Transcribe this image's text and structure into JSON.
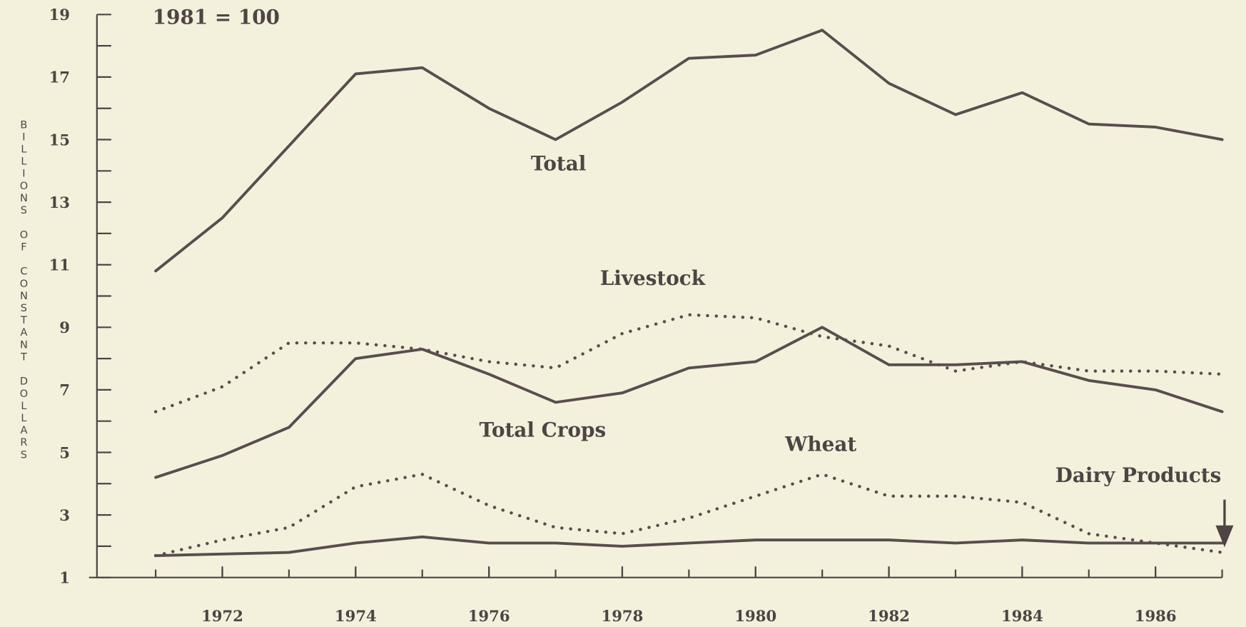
{
  "chart_data": {
    "type": "line",
    "annotation": "1981 = 100",
    "y_label": "BILLIONS OF CONSTANT DOLLARS",
    "x": [
      1971,
      1972,
      1973,
      1974,
      1975,
      1976,
      1977,
      1978,
      1979,
      1980,
      1981,
      1982,
      1983,
      1984,
      1985,
      1986,
      1987
    ],
    "xlim": [
      1970,
      1987
    ],
    "xticks": [
      1972,
      1974,
      1976,
      1978,
      1980,
      1982,
      1984,
      1986
    ],
    "ylim": [
      1,
      19
    ],
    "yticks": [
      1,
      3,
      5,
      7,
      9,
      11,
      13,
      15,
      17,
      19
    ],
    "series": [
      {
        "name": "Total",
        "color": "#5a4d4d",
        "dash": false,
        "values": [
          10.8,
          12.5,
          14.8,
          17.1,
          17.3,
          16.0,
          15.0,
          16.2,
          17.6,
          17.7,
          18.5,
          16.8,
          15.8,
          16.5,
          15.5,
          15.4,
          15.0
        ]
      },
      {
        "name": "Livestock",
        "color": "#5a4d4d",
        "dash": true,
        "values": [
          6.3,
          7.1,
          8.5,
          8.5,
          8.3,
          7.9,
          7.7,
          8.8,
          9.4,
          9.3,
          8.7,
          8.4,
          7.6,
          7.9,
          7.6,
          7.6,
          7.5
        ]
      },
      {
        "name": "Total Crops",
        "color": "#5a4d4d",
        "dash": false,
        "values": [
          4.2,
          4.9,
          5.8,
          8.0,
          8.3,
          7.5,
          6.6,
          6.9,
          7.7,
          7.9,
          9.0,
          7.8,
          7.8,
          7.9,
          7.3,
          7.0,
          6.3
        ]
      },
      {
        "name": "Wheat",
        "color": "#5a4d4d",
        "dash": true,
        "values": [
          1.7,
          2.2,
          2.6,
          3.9,
          4.3,
          3.3,
          2.6,
          2.4,
          2.9,
          3.6,
          4.3,
          3.6,
          3.6,
          3.4,
          2.4,
          2.1,
          1.8
        ]
      },
      {
        "name": "Dairy Products",
        "color": "#5a4d4d",
        "dash": false,
        "values": [
          1.7,
          1.75,
          1.8,
          2.1,
          2.3,
          2.1,
          2.1,
          2.0,
          2.1,
          2.2,
          2.2,
          2.2,
          2.1,
          2.2,
          2.1,
          2.1,
          2.1
        ]
      }
    ]
  }
}
